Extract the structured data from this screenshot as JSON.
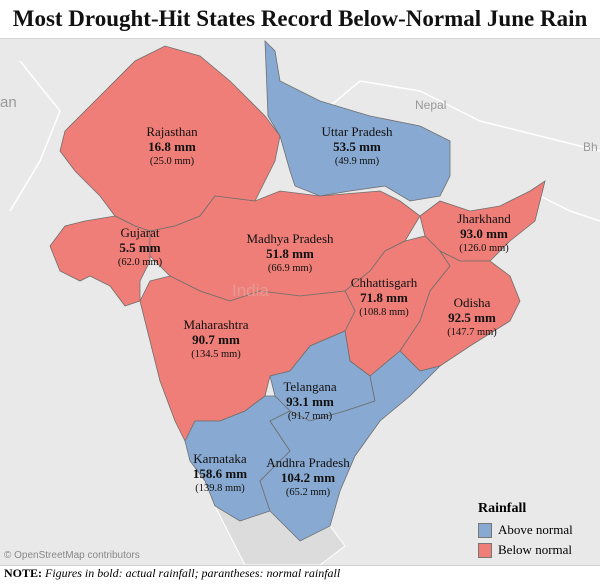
{
  "title": "Most Drought-Hit States Record Below-Normal June Rain",
  "basemap": {
    "labels": [
      "an",
      "Nepal",
      "Bh",
      "India"
    ],
    "attribution": "© OpenStreetMap contributors"
  },
  "colors": {
    "above": "#88a9d1",
    "below": "#ee7e77"
  },
  "states": [
    {
      "name": "Rajasthan",
      "actual": "16.8 mm",
      "normal": "(25.0 mm)",
      "category": "below"
    },
    {
      "name": "Uttar Pradesh",
      "actual": "53.5 mm",
      "normal": "(49.9 mm)",
      "category": "above"
    },
    {
      "name": "Gujarat",
      "actual": "5.5 mm",
      "normal": "(62.0 mm)",
      "category": "below"
    },
    {
      "name": "Madhya Pradesh",
      "actual": "51.8 mm",
      "normal": "(66.9 mm)",
      "category": "below"
    },
    {
      "name": "Jharkhand",
      "actual": "93.0 mm",
      "normal": "(126.0 mm)",
      "category": "below"
    },
    {
      "name": "Chhattisgarh",
      "actual": "71.8 mm",
      "normal": "(108.8 mm)",
      "category": "below"
    },
    {
      "name": "Odisha",
      "actual": "92.5 mm",
      "normal": "(147.7 mm)",
      "category": "below"
    },
    {
      "name": "Maharashtra",
      "actual": "90.7 mm",
      "normal": "(134.5 mm)",
      "category": "below"
    },
    {
      "name": "Telangana",
      "actual": "93.1 mm",
      "normal": "(91.7 mm)",
      "category": "above"
    },
    {
      "name": "Karnataka",
      "actual": "158.6 mm",
      "normal": "(139.8 mm)",
      "category": "above"
    },
    {
      "name": "Andhra Pradesh",
      "actual": "104.2 mm",
      "normal": "(65.2 mm)",
      "category": "above"
    }
  ],
  "legend": {
    "title": "Rainfall",
    "items": [
      {
        "label": "Above normal",
        "category": "above"
      },
      {
        "label": "Below normal",
        "category": "below"
      }
    ]
  },
  "note": {
    "label": "NOTE:",
    "text": "Figures in bold: actual rainfall; parantheses: normal rainfall"
  }
}
